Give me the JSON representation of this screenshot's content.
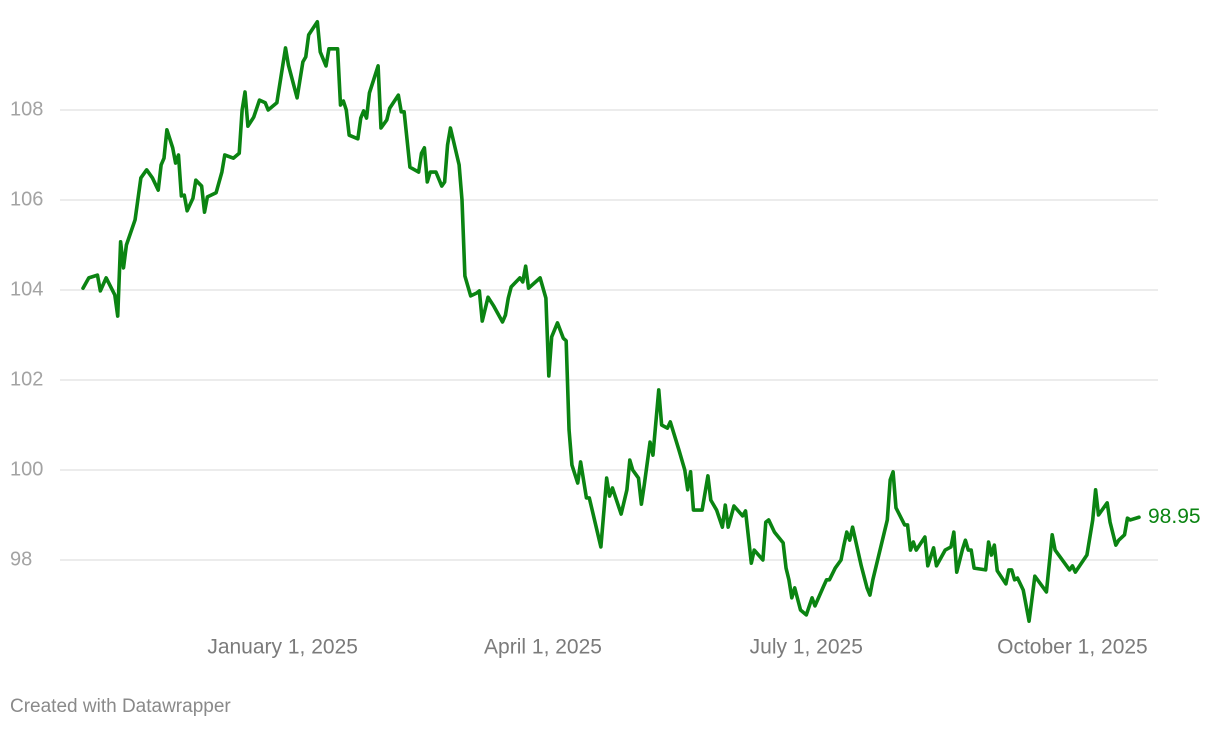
{
  "chart_data": {
    "type": "line",
    "color": "#0b8412",
    "grid": true,
    "credit": "Created with Datawrapper",
    "ylim": [
      96.5,
      110.2
    ],
    "yticks": [
      98,
      100,
      102,
      104,
      106,
      108
    ],
    "xlim": [
      "2024-10-24",
      "2025-10-24"
    ],
    "xticks": [
      {
        "value": "2025-01-01",
        "label": "January 1, 2025"
      },
      {
        "value": "2025-04-01",
        "label": "April 1, 2025"
      },
      {
        "value": "2025-07-01",
        "label": "July 1, 2025"
      },
      {
        "value": "2025-10-01",
        "label": "October 1, 2025"
      }
    ],
    "x": [
      "2024-10-24",
      "2024-10-26",
      "2024-10-29",
      "2024-10-30",
      "2024-11-01",
      "2024-11-04",
      "2024-11-05",
      "2024-11-06",
      "2024-11-07",
      "2024-11-08",
      "2024-11-11",
      "2024-11-13",
      "2024-11-15",
      "2024-11-17",
      "2024-11-19",
      "2024-11-20",
      "2024-11-21",
      "2024-11-22",
      "2024-11-24",
      "2024-11-25",
      "2024-11-26",
      "2024-11-27",
      "2024-11-28",
      "2024-11-29",
      "2024-12-01",
      "2024-12-02",
      "2024-12-04",
      "2024-12-05",
      "2024-12-06",
      "2024-12-09",
      "2024-12-11",
      "2024-12-12",
      "2024-12-15",
      "2024-12-17",
      "2024-12-18",
      "2024-12-19",
      "2024-12-20",
      "2024-12-22",
      "2024-12-24",
      "2024-12-26",
      "2024-12-27",
      "2024-12-30",
      "2025-01-02",
      "2025-01-03",
      "2025-01-06",
      "2025-01-08",
      "2025-01-09",
      "2025-01-10",
      "2025-01-13",
      "2025-01-14",
      "2025-01-16",
      "2025-01-17",
      "2025-01-20",
      "2025-01-21",
      "2025-01-22",
      "2025-01-23",
      "2025-01-24",
      "2025-01-27",
      "2025-01-28",
      "2025-01-29",
      "2025-01-30",
      "2025-01-31",
      "2025-02-03",
      "2025-02-04",
      "2025-02-06",
      "2025-02-07",
      "2025-02-10",
      "2025-02-11",
      "2025-02-12",
      "2025-02-14",
      "2025-02-17",
      "2025-02-18",
      "2025-02-19",
      "2025-02-20",
      "2025-02-21",
      "2025-02-23",
      "2025-02-25",
      "2025-02-26",
      "2025-02-27",
      "2025-02-28",
      "2025-03-03",
      "2025-03-04",
      "2025-03-05",
      "2025-03-07",
      "2025-03-09",
      "2025-03-10",
      "2025-03-11",
      "2025-03-13",
      "2025-03-15",
      "2025-03-18",
      "2025-03-19",
      "2025-03-20",
      "2025-03-21",
      "2025-03-24",
      "2025-03-25",
      "2025-03-26",
      "2025-03-27",
      "2025-03-31",
      "2025-04-02",
      "2025-04-03",
      "2025-04-04",
      "2025-04-06",
      "2025-04-08",
      "2025-04-09",
      "2025-04-10",
      "2025-04-11",
      "2025-04-13",
      "2025-04-14",
      "2025-04-16",
      "2025-04-17",
      "2025-04-21",
      "2025-04-23",
      "2025-04-24",
      "2025-04-25",
      "2025-04-28",
      "2025-04-30",
      "2025-05-01",
      "2025-05-02",
      "2025-05-04",
      "2025-05-05",
      "2025-05-06",
      "2025-05-08",
      "2025-05-09",
      "2025-05-11",
      "2025-05-12",
      "2025-05-14",
      "2025-05-15",
      "2025-05-18",
      "2025-05-20",
      "2025-05-21",
      "2025-05-22",
      "2025-05-23",
      "2025-05-26",
      "2025-05-28",
      "2025-05-29",
      "2025-05-31",
      "2025-06-02",
      "2025-06-03",
      "2025-06-04",
      "2025-06-06",
      "2025-06-09",
      "2025-06-10",
      "2025-06-12",
      "2025-06-13",
      "2025-06-16",
      "2025-06-17",
      "2025-06-18",
      "2025-06-20",
      "2025-06-23",
      "2025-06-24",
      "2025-06-25",
      "2025-06-26",
      "2025-06-27",
      "2025-06-29",
      "2025-07-01",
      "2025-07-03",
      "2025-07-04",
      "2025-07-07",
      "2025-07-08",
      "2025-07-09",
      "2025-07-11",
      "2025-07-13",
      "2025-07-14",
      "2025-07-15",
      "2025-07-16",
      "2025-07-17",
      "2025-07-20",
      "2025-07-22",
      "2025-07-23",
      "2025-07-24",
      "2025-07-29",
      "2025-07-30",
      "2025-07-31",
      "2025-08-01",
      "2025-08-04",
      "2025-08-05",
      "2025-08-06",
      "2025-08-07",
      "2025-08-08",
      "2025-08-11",
      "2025-08-12",
      "2025-08-14",
      "2025-08-15",
      "2025-08-18",
      "2025-08-20",
      "2025-08-21",
      "2025-08-22",
      "2025-08-24",
      "2025-08-25",
      "2025-08-26",
      "2025-08-27",
      "2025-08-28",
      "2025-09-01",
      "2025-09-02",
      "2025-09-03",
      "2025-09-04",
      "2025-09-05",
      "2025-09-08",
      "2025-09-09",
      "2025-09-10",
      "2025-09-11",
      "2025-09-12",
      "2025-09-14",
      "2025-09-16",
      "2025-09-18",
      "2025-09-22",
      "2025-09-24",
      "2025-09-25",
      "2025-09-30",
      "2025-10-01",
      "2025-10-02",
      "2025-10-06",
      "2025-10-08",
      "2025-10-09",
      "2025-10-10",
      "2025-10-13",
      "2025-10-14",
      "2025-10-16",
      "2025-10-17",
      "2025-10-19",
      "2025-10-20",
      "2025-10-21",
      "2025-10-24"
    ],
    "values": [
      104.04,
      104.27,
      104.33,
      103.98,
      104.27,
      103.89,
      103.42,
      105.07,
      104.49,
      105.0,
      105.56,
      106.49,
      106.67,
      106.49,
      106.22,
      106.78,
      106.93,
      107.56,
      107.16,
      106.82,
      107.0,
      106.09,
      106.11,
      105.76,
      106.04,
      106.44,
      106.31,
      105.73,
      106.07,
      106.16,
      106.62,
      107.0,
      106.93,
      107.04,
      108.0,
      108.4,
      107.64,
      107.84,
      108.22,
      108.16,
      108.0,
      108.16,
      109.38,
      109.0,
      108.27,
      109.07,
      109.18,
      109.67,
      109.96,
      109.29,
      108.98,
      109.36,
      109.36,
      108.11,
      108.2,
      108.0,
      107.44,
      107.36,
      107.82,
      107.98,
      107.82,
      108.38,
      108.98,
      107.6,
      107.78,
      108.04,
      108.33,
      107.96,
      107.96,
      106.73,
      106.62,
      107.04,
      107.16,
      106.4,
      106.62,
      106.62,
      106.31,
      106.4,
      107.22,
      107.6,
      106.78,
      106.0,
      104.31,
      103.87,
      103.93,
      103.98,
      103.31,
      103.84,
      103.64,
      103.29,
      103.44,
      103.82,
      104.07,
      104.27,
      104.18,
      104.53,
      104.04,
      104.27,
      103.82,
      102.09,
      102.96,
      103.27,
      102.93,
      102.87,
      100.89,
      100.11,
      99.71,
      100.18,
      99.38,
      99.38,
      98.29,
      99.82,
      99.42,
      99.6,
      99.02,
      99.56,
      100.22,
      100.0,
      99.82,
      99.24,
      99.67,
      100.62,
      100.33,
      101.78,
      101.0,
      100.93,
      101.07,
      100.44,
      100.0,
      99.56,
      99.96,
      99.11,
      99.11,
      99.87,
      99.33,
      99.11,
      98.73,
      99.22,
      98.73,
      99.2,
      98.98,
      99.09,
      97.93,
      98.22,
      98.0,
      98.84,
      98.89,
      98.62,
      98.38,
      97.82,
      97.56,
      97.16,
      97.38,
      96.89,
      96.78,
      97.16,
      96.98,
      97.42,
      97.56,
      97.56,
      97.82,
      98.0,
      98.33,
      98.62,
      98.44,
      98.73,
      97.87,
      97.38,
      97.22,
      97.56,
      98.89,
      99.78,
      99.96,
      99.16,
      98.78,
      98.78,
      98.22,
      98.4,
      98.22,
      98.51,
      97.87,
      98.27,
      97.87,
      98.22,
      98.29,
      98.62,
      97.73,
      98.24,
      98.44,
      98.22,
      98.22,
      97.82,
      97.78,
      98.4,
      98.11,
      98.33,
      97.76,
      97.47,
      97.78,
      97.78,
      97.56,
      97.6,
      97.33,
      96.64,
      97.64,
      97.29,
      98.56,
      98.22,
      97.78,
      97.87,
      97.73,
      98.11,
      98.89,
      99.56,
      99.0,
      99.27,
      98.84,
      98.33,
      98.44,
      98.56,
      98.93,
      98.89,
      98.95
    ]
  }
}
